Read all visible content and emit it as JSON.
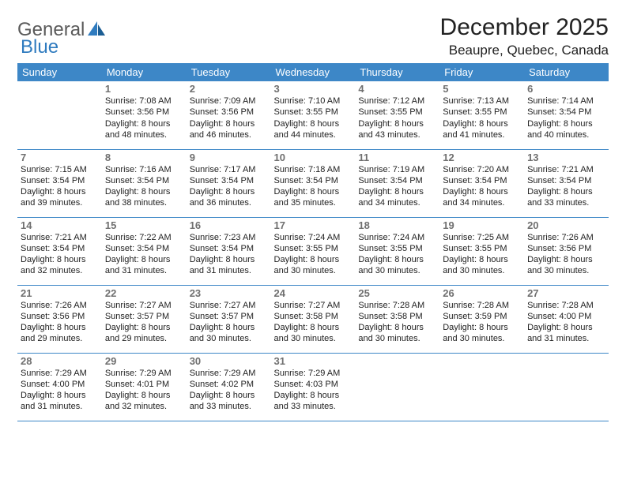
{
  "brand": {
    "part1": "General",
    "part2": "Blue"
  },
  "title": "December 2025",
  "location": "Beaupre, Quebec, Canada",
  "styling": {
    "page_bg": "#ffffff",
    "header_bg": "#3d87c7",
    "header_text_color": "#ffffff",
    "cell_border_color": "#3d87c7",
    "daynum_color": "#6f6f6f",
    "body_text_color": "#222222",
    "logo_gray": "#5a5a5a",
    "logo_blue": "#2f7bbf",
    "title_fontsize": 30,
    "location_fontsize": 17,
    "header_fontsize": 13,
    "body_fontsize": 11,
    "columns": 7,
    "rows": 5
  },
  "weekdays": [
    "Sunday",
    "Monday",
    "Tuesday",
    "Wednesday",
    "Thursday",
    "Friday",
    "Saturday"
  ],
  "weeks": [
    [
      null,
      {
        "n": "1",
        "sr": "Sunrise: 7:08 AM",
        "ss": "Sunset: 3:56 PM",
        "d1": "Daylight: 8 hours",
        "d2": "and 48 minutes."
      },
      {
        "n": "2",
        "sr": "Sunrise: 7:09 AM",
        "ss": "Sunset: 3:56 PM",
        "d1": "Daylight: 8 hours",
        "d2": "and 46 minutes."
      },
      {
        "n": "3",
        "sr": "Sunrise: 7:10 AM",
        "ss": "Sunset: 3:55 PM",
        "d1": "Daylight: 8 hours",
        "d2": "and 44 minutes."
      },
      {
        "n": "4",
        "sr": "Sunrise: 7:12 AM",
        "ss": "Sunset: 3:55 PM",
        "d1": "Daylight: 8 hours",
        "d2": "and 43 minutes."
      },
      {
        "n": "5",
        "sr": "Sunrise: 7:13 AM",
        "ss": "Sunset: 3:55 PM",
        "d1": "Daylight: 8 hours",
        "d2": "and 41 minutes."
      },
      {
        "n": "6",
        "sr": "Sunrise: 7:14 AM",
        "ss": "Sunset: 3:54 PM",
        "d1": "Daylight: 8 hours",
        "d2": "and 40 minutes."
      }
    ],
    [
      {
        "n": "7",
        "sr": "Sunrise: 7:15 AM",
        "ss": "Sunset: 3:54 PM",
        "d1": "Daylight: 8 hours",
        "d2": "and 39 minutes."
      },
      {
        "n": "8",
        "sr": "Sunrise: 7:16 AM",
        "ss": "Sunset: 3:54 PM",
        "d1": "Daylight: 8 hours",
        "d2": "and 38 minutes."
      },
      {
        "n": "9",
        "sr": "Sunrise: 7:17 AM",
        "ss": "Sunset: 3:54 PM",
        "d1": "Daylight: 8 hours",
        "d2": "and 36 minutes."
      },
      {
        "n": "10",
        "sr": "Sunrise: 7:18 AM",
        "ss": "Sunset: 3:54 PM",
        "d1": "Daylight: 8 hours",
        "d2": "and 35 minutes."
      },
      {
        "n": "11",
        "sr": "Sunrise: 7:19 AM",
        "ss": "Sunset: 3:54 PM",
        "d1": "Daylight: 8 hours",
        "d2": "and 34 minutes."
      },
      {
        "n": "12",
        "sr": "Sunrise: 7:20 AM",
        "ss": "Sunset: 3:54 PM",
        "d1": "Daylight: 8 hours",
        "d2": "and 34 minutes."
      },
      {
        "n": "13",
        "sr": "Sunrise: 7:21 AM",
        "ss": "Sunset: 3:54 PM",
        "d1": "Daylight: 8 hours",
        "d2": "and 33 minutes."
      }
    ],
    [
      {
        "n": "14",
        "sr": "Sunrise: 7:21 AM",
        "ss": "Sunset: 3:54 PM",
        "d1": "Daylight: 8 hours",
        "d2": "and 32 minutes."
      },
      {
        "n": "15",
        "sr": "Sunrise: 7:22 AM",
        "ss": "Sunset: 3:54 PM",
        "d1": "Daylight: 8 hours",
        "d2": "and 31 minutes."
      },
      {
        "n": "16",
        "sr": "Sunrise: 7:23 AM",
        "ss": "Sunset: 3:54 PM",
        "d1": "Daylight: 8 hours",
        "d2": "and 31 minutes."
      },
      {
        "n": "17",
        "sr": "Sunrise: 7:24 AM",
        "ss": "Sunset: 3:55 PM",
        "d1": "Daylight: 8 hours",
        "d2": "and 30 minutes."
      },
      {
        "n": "18",
        "sr": "Sunrise: 7:24 AM",
        "ss": "Sunset: 3:55 PM",
        "d1": "Daylight: 8 hours",
        "d2": "and 30 minutes."
      },
      {
        "n": "19",
        "sr": "Sunrise: 7:25 AM",
        "ss": "Sunset: 3:55 PM",
        "d1": "Daylight: 8 hours",
        "d2": "and 30 minutes."
      },
      {
        "n": "20",
        "sr": "Sunrise: 7:26 AM",
        "ss": "Sunset: 3:56 PM",
        "d1": "Daylight: 8 hours",
        "d2": "and 30 minutes."
      }
    ],
    [
      {
        "n": "21",
        "sr": "Sunrise: 7:26 AM",
        "ss": "Sunset: 3:56 PM",
        "d1": "Daylight: 8 hours",
        "d2": "and 29 minutes."
      },
      {
        "n": "22",
        "sr": "Sunrise: 7:27 AM",
        "ss": "Sunset: 3:57 PM",
        "d1": "Daylight: 8 hours",
        "d2": "and 29 minutes."
      },
      {
        "n": "23",
        "sr": "Sunrise: 7:27 AM",
        "ss": "Sunset: 3:57 PM",
        "d1": "Daylight: 8 hours",
        "d2": "and 30 minutes."
      },
      {
        "n": "24",
        "sr": "Sunrise: 7:27 AM",
        "ss": "Sunset: 3:58 PM",
        "d1": "Daylight: 8 hours",
        "d2": "and 30 minutes."
      },
      {
        "n": "25",
        "sr": "Sunrise: 7:28 AM",
        "ss": "Sunset: 3:58 PM",
        "d1": "Daylight: 8 hours",
        "d2": "and 30 minutes."
      },
      {
        "n": "26",
        "sr": "Sunrise: 7:28 AM",
        "ss": "Sunset: 3:59 PM",
        "d1": "Daylight: 8 hours",
        "d2": "and 30 minutes."
      },
      {
        "n": "27",
        "sr": "Sunrise: 7:28 AM",
        "ss": "Sunset: 4:00 PM",
        "d1": "Daylight: 8 hours",
        "d2": "and 31 minutes."
      }
    ],
    [
      {
        "n": "28",
        "sr": "Sunrise: 7:29 AM",
        "ss": "Sunset: 4:00 PM",
        "d1": "Daylight: 8 hours",
        "d2": "and 31 minutes."
      },
      {
        "n": "29",
        "sr": "Sunrise: 7:29 AM",
        "ss": "Sunset: 4:01 PM",
        "d1": "Daylight: 8 hours",
        "d2": "and 32 minutes."
      },
      {
        "n": "30",
        "sr": "Sunrise: 7:29 AM",
        "ss": "Sunset: 4:02 PM",
        "d1": "Daylight: 8 hours",
        "d2": "and 33 minutes."
      },
      {
        "n": "31",
        "sr": "Sunrise: 7:29 AM",
        "ss": "Sunset: 4:03 PM",
        "d1": "Daylight: 8 hours",
        "d2": "and 33 minutes."
      },
      null,
      null,
      null
    ]
  ]
}
